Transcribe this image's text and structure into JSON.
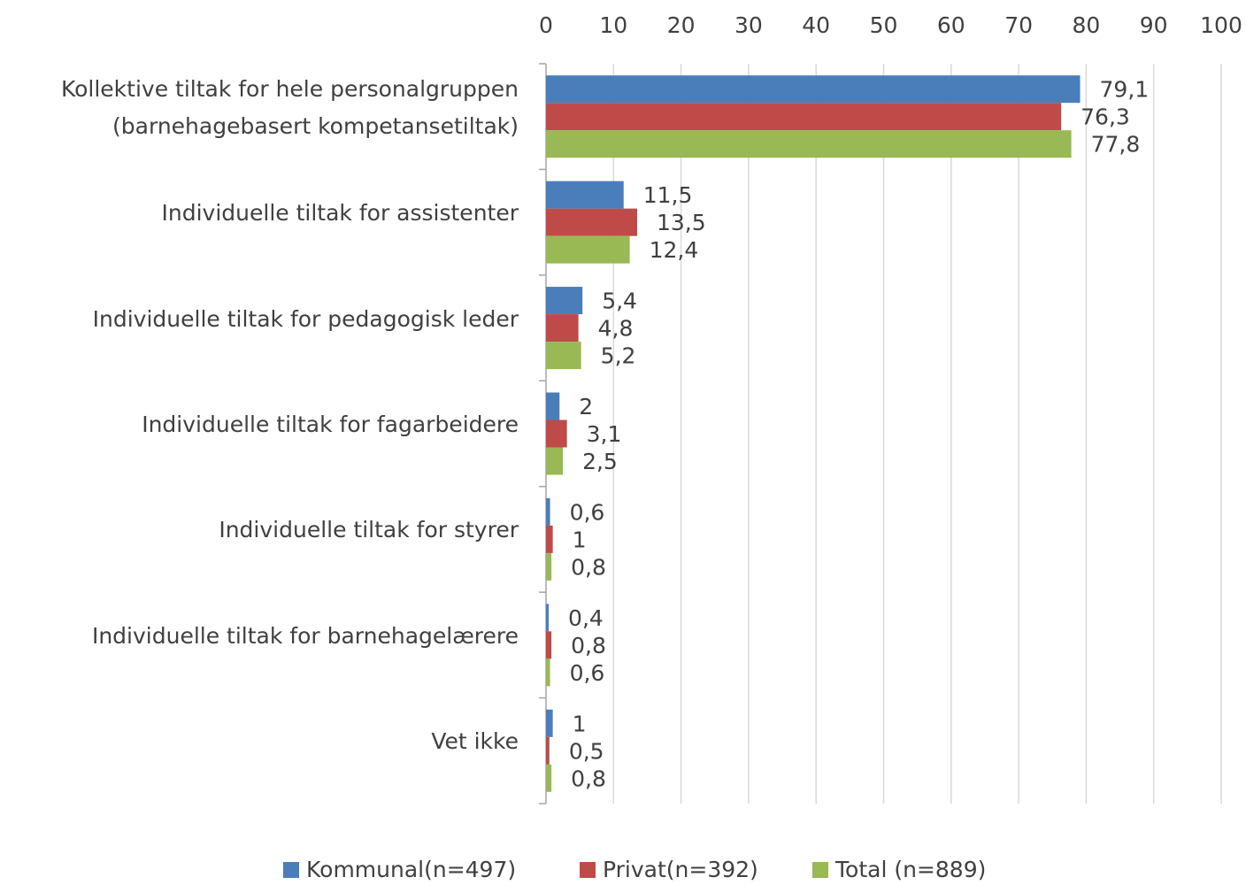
{
  "chart_data": {
    "type": "hbar",
    "categories": [
      "Kollektive tiltak for hele personalgruppen\n(barnehagebasert kompetansetiltak)",
      "Individuelle tiltak for assistenter",
      "Individuelle tiltak for pedagogisk leder",
      "Individuelle tiltak for fagarbeidere",
      "Individuelle tiltak for styrer",
      "Individuelle tiltak for barnehagelærere",
      "Vet ikke"
    ],
    "series": [
      {
        "name": "Kommunal(n=497)",
        "color": "#4a7ebb",
        "values": [
          79.1,
          11.5,
          5.4,
          2,
          0.6,
          0.4,
          1
        ],
        "value_labels": [
          "79,1",
          "11,5",
          "5,4",
          "2",
          "0,6",
          "0,4",
          "1"
        ]
      },
      {
        "name": "Privat(n=392)",
        "color": "#be4b48",
        "values": [
          76.3,
          13.5,
          4.8,
          3.1,
          1,
          0.8,
          0.5
        ],
        "value_labels": [
          "76,3",
          "13,5",
          "4,8",
          "3,1",
          "1",
          "0,8",
          "0,5"
        ]
      },
      {
        "name": "Total (n=889)",
        "color": "#98b954",
        "values": [
          77.8,
          12.4,
          5.2,
          2.5,
          0.8,
          0.6,
          0.8
        ],
        "value_labels": [
          "77,8",
          "12,4",
          "5,2",
          "2,5",
          "0,8",
          "0,6",
          "0,8"
        ]
      }
    ],
    "xlim": [
      0,
      100
    ],
    "xticks": [
      0,
      10,
      20,
      30,
      40,
      50,
      60,
      70,
      80,
      90,
      100
    ],
    "grid": true,
    "legend": "bottom"
  }
}
